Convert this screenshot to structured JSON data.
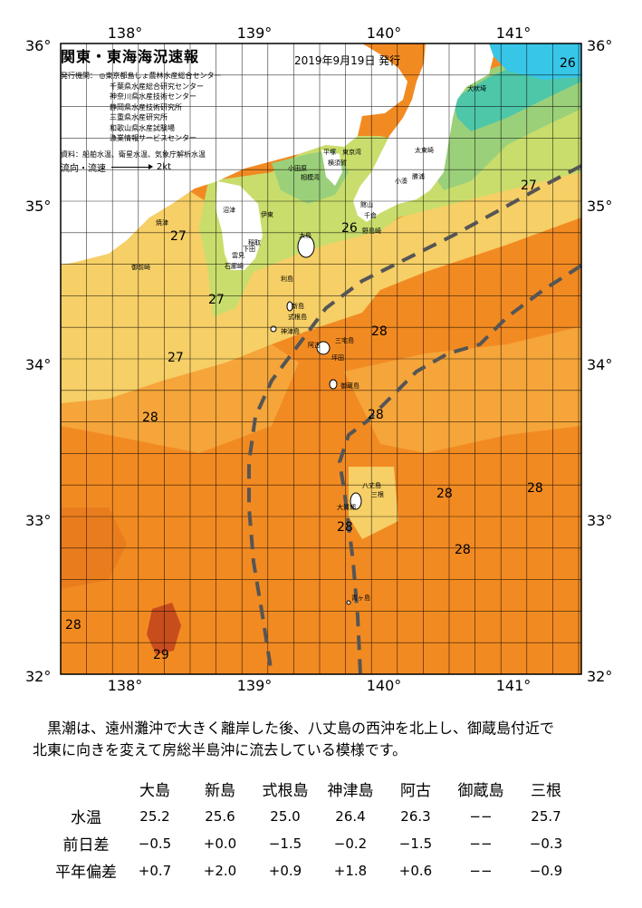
{
  "map": {
    "title": "関東・東海海況速報",
    "date": "2019年9月19日 発行",
    "agencies_label": "発行機関：",
    "agencies": [
      "◎東京都島しょ農林水産総合センター",
      "千葉県水産総合研究センター",
      "神奈川県水産技術センター",
      "静岡県水産技術研究所",
      "三重県水産研究所",
      "和歌山県水産試験場",
      "漁業情報サービスセンター"
    ],
    "source": "資料：船舶水温、衛星水温、気象庁解析水温",
    "flow_label": "流向・流速",
    "flow_scale": "2kt",
    "lon_labels": [
      "138°",
      "139°",
      "140°",
      "141°"
    ],
    "lat_labels": [
      "36°",
      "35°",
      "34°",
      "33°",
      "32°"
    ],
    "temperature_labels": [
      "26",
      "27",
      "26",
      "27",
      "27",
      "27",
      "28",
      "28",
      "28",
      "28",
      "28",
      "28",
      "28",
      "29",
      "28"
    ],
    "place_names": [
      "小田原",
      "平塚",
      "横須賀",
      "館山",
      "千倉",
      "野島崎",
      "大島",
      "利島",
      "新島",
      "式根島",
      "神津島",
      "三宅島",
      "御蔵島",
      "八丈島",
      "三根",
      "大賀郷",
      "青ヶ島",
      "太東崎",
      "勝浦",
      "犬吠埼",
      "焼津",
      "御前崎",
      "沼津",
      "伊東",
      "稲取",
      "下田",
      "雲見",
      "石廊崎",
      "小湊",
      "阿古",
      "坪田",
      "相模湾",
      "東京湾"
    ]
  },
  "description": {
    "line1": "黒潮は、遠州灘沖で大きく離岸した後、八丈島の西沖を北上し、御蔵島付近で",
    "line2": "北東に向きを変えて房総半島沖に流去している模様です。"
  },
  "table": {
    "stations": [
      "大島",
      "新島",
      "式根島",
      "神津島",
      "阿古",
      "御蔵島",
      "三根"
    ],
    "rows": [
      {
        "label": "水温",
        "values": [
          "25.2",
          "25.6",
          "25.0",
          "26.4",
          "26.3",
          "−−",
          "25.7"
        ]
      },
      {
        "label": "前日差",
        "values": [
          "−0.5",
          "+0.0",
          "−1.5",
          "−0.2",
          "−1.5",
          "−−",
          "−0.3"
        ]
      },
      {
        "label": "平年偏差",
        "values": [
          "+0.7",
          "+2.0",
          "+0.9",
          "+1.8",
          "+0.6",
          "−−",
          "−0.9"
        ]
      }
    ]
  },
  "colors": {
    "warm_29": "#c84d1c",
    "warm_28": "#f28a22",
    "warm_27b": "#f5a53a",
    "temp_27": "#f6cf66",
    "temp_26": "#c9dd6c",
    "temp_25": "#9bd07a",
    "temp_24": "#4ec6a8",
    "cool_23": "#38c6e8",
    "land": "#ffffff",
    "kuroshio_axis": "#555555"
  }
}
